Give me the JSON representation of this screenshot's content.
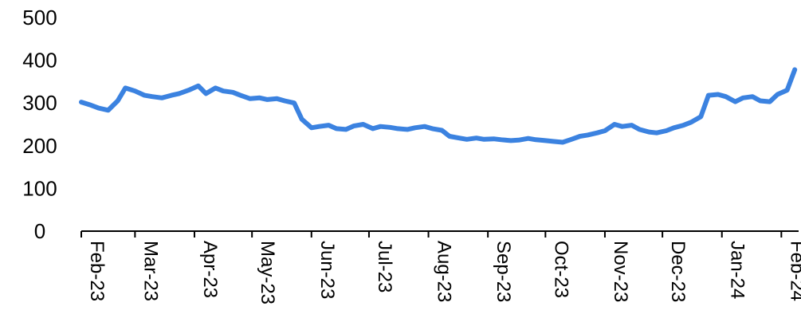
{
  "chart_data": {
    "type": "line",
    "title": "",
    "xlabel": "",
    "ylabel": "",
    "ylim": [
      0,
      500
    ],
    "y_ticks": [
      0,
      100,
      200,
      300,
      400,
      500
    ],
    "x_tick_labels": [
      "Feb-23",
      "Mar-23",
      "Apr-23",
      "May-23",
      "Jun-23",
      "Jul-23",
      "Aug-23",
      "Sep-23",
      "Oct-23",
      "Nov-23",
      "Dec-23",
      "Jan-24",
      "Feb-24"
    ],
    "grid": false,
    "legend": "none",
    "series": [
      {
        "color": "#3b82e0",
        "x": [
          "2023-02-01",
          "2023-02-06",
          "2023-02-10",
          "2023-02-15",
          "2023-02-20",
          "2023-02-24",
          "2023-03-01",
          "2023-03-06",
          "2023-03-10",
          "2023-03-15",
          "2023-03-20",
          "2023-03-24",
          "2023-03-29",
          "2023-04-03",
          "2023-04-07",
          "2023-04-12",
          "2023-04-16",
          "2023-04-21",
          "2023-04-25",
          "2023-04-30",
          "2023-05-05",
          "2023-05-09",
          "2023-05-14",
          "2023-05-18",
          "2023-05-23",
          "2023-05-27",
          "2023-06-01",
          "2023-06-05",
          "2023-06-10",
          "2023-06-14",
          "2023-06-19",
          "2023-06-23",
          "2023-06-28",
          "2023-07-03",
          "2023-07-07",
          "2023-07-12",
          "2023-07-16",
          "2023-07-21",
          "2023-07-25",
          "2023-07-30",
          "2023-08-03",
          "2023-08-08",
          "2023-08-12",
          "2023-08-17",
          "2023-08-21",
          "2023-08-26",
          "2023-08-30",
          "2023-09-04",
          "2023-09-08",
          "2023-09-13",
          "2023-09-17",
          "2023-09-22",
          "2023-09-26",
          "2023-10-01",
          "2023-10-05",
          "2023-10-10",
          "2023-10-14",
          "2023-10-19",
          "2023-10-23",
          "2023-10-28",
          "2023-11-01",
          "2023-11-06",
          "2023-11-10",
          "2023-11-15",
          "2023-11-19",
          "2023-11-24",
          "2023-11-28",
          "2023-12-03",
          "2023-12-07",
          "2023-12-12",
          "2023-12-16",
          "2023-12-21",
          "2023-12-25",
          "2023-12-30",
          "2024-01-03",
          "2024-01-08",
          "2024-01-12",
          "2024-01-17",
          "2024-01-21",
          "2024-01-26",
          "2024-01-30",
          "2024-02-04",
          "2024-02-08"
        ],
        "y": [
          302,
          295,
          288,
          283,
          305,
          335,
          328,
          318,
          315,
          312,
          318,
          322,
          330,
          340,
          322,
          335,
          328,
          325,
          318,
          310,
          312,
          308,
          310,
          305,
          300,
          262,
          242,
          245,
          248,
          240,
          238,
          246,
          250,
          240,
          245,
          243,
          240,
          238,
          242,
          245,
          240,
          236,
          222,
          218,
          215,
          218,
          215,
          216,
          214,
          212,
          213,
          217,
          214,
          212,
          210,
          208,
          214,
          222,
          225,
          230,
          235,
          250,
          245,
          248,
          238,
          232,
          230,
          235,
          242,
          248,
          255,
          268,
          318,
          320,
          315,
          303,
          312,
          315,
          305,
          303,
          320,
          330,
          378
        ]
      }
    ]
  }
}
